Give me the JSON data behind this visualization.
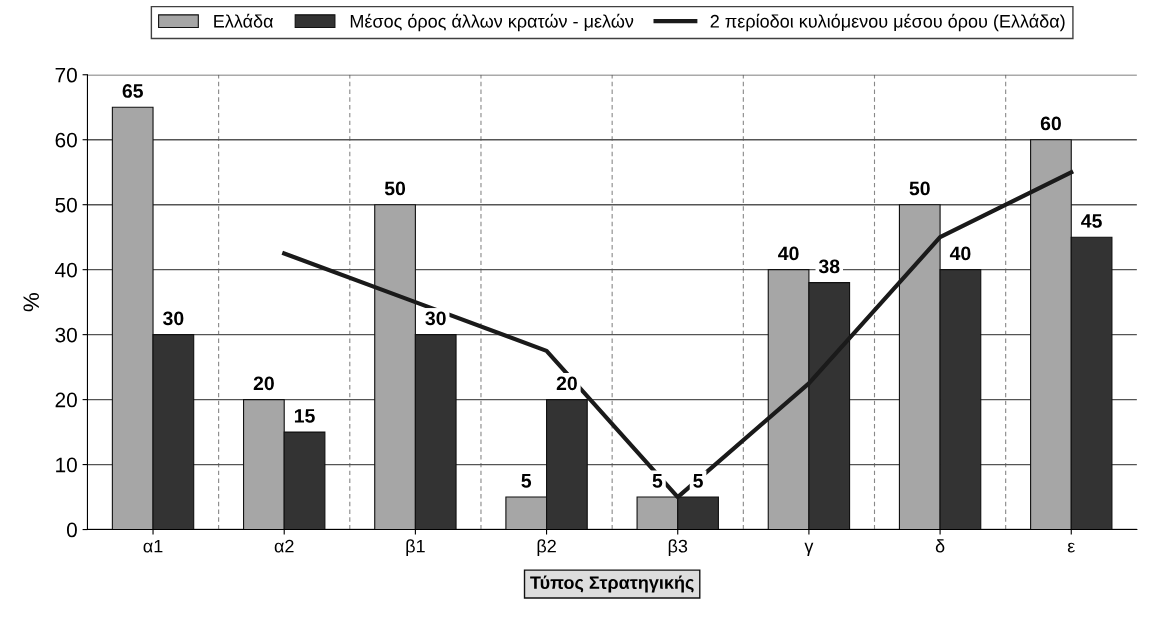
{
  "chart_data": {
    "type": "bar",
    "xlabel": "Τύπος Στρατηγικής",
    "ylabel": "%",
    "categories": [
      "α1",
      "α2",
      "β1",
      "β2",
      "β3",
      "γ",
      "δ",
      "ε"
    ],
    "series": [
      {
        "name": "Ελλάδα",
        "color": "#a6a6a6",
        "values": [
          65,
          20,
          50,
          5,
          5,
          40,
          50,
          60
        ],
        "value_labels": [
          "65",
          "20",
          "50",
          "5",
          "5",
          "40",
          "50",
          "60"
        ]
      },
      {
        "name": "Μέσος όρος άλλων κρατών - μελών",
        "color": "#333333",
        "values": [
          30,
          15,
          30,
          20,
          5,
          38,
          40,
          45
        ],
        "value_labels": [
          "30",
          "15",
          "30",
          "20",
          "5",
          "38",
          "40",
          "45"
        ]
      },
      {
        "name": "2 περίοδοι κυλιόμενου μέσου όρου (Ελλάδα)",
        "type": "line",
        "color": "#1a1a1a",
        "values": [
          null,
          42.5,
          35,
          27.5,
          5,
          22.5,
          45,
          55
        ]
      }
    ],
    "ylim": [
      0,
      70
    ],
    "yticks": [
      0,
      10,
      20,
      30,
      40,
      50,
      60,
      70
    ],
    "grid": true,
    "legend": "top"
  }
}
